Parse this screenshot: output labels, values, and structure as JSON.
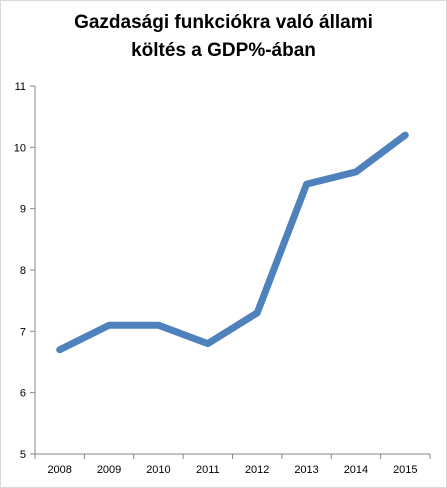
{
  "chart_data": {
    "type": "line",
    "title_lines": [
      "Gazdasági funkciókra való állami",
      "költés a GDP%-ában"
    ],
    "x": [
      "2008",
      "2009",
      "2010",
      "2011",
      "2012",
      "2013",
      "2014",
      "2015"
    ],
    "series": [
      {
        "values": [
          6.7,
          7.1,
          7.1,
          6.8,
          7.3,
          9.4,
          9.6,
          10.2
        ],
        "color": "#4f81bd"
      }
    ],
    "y_ticks": [
      "5",
      "6",
      "7",
      "8",
      "9",
      "10",
      "11"
    ],
    "ylim": [
      5,
      11
    ],
    "xlabel": "",
    "ylabel": "",
    "legend": "none",
    "grid": false,
    "axis_color": "#868686"
  }
}
